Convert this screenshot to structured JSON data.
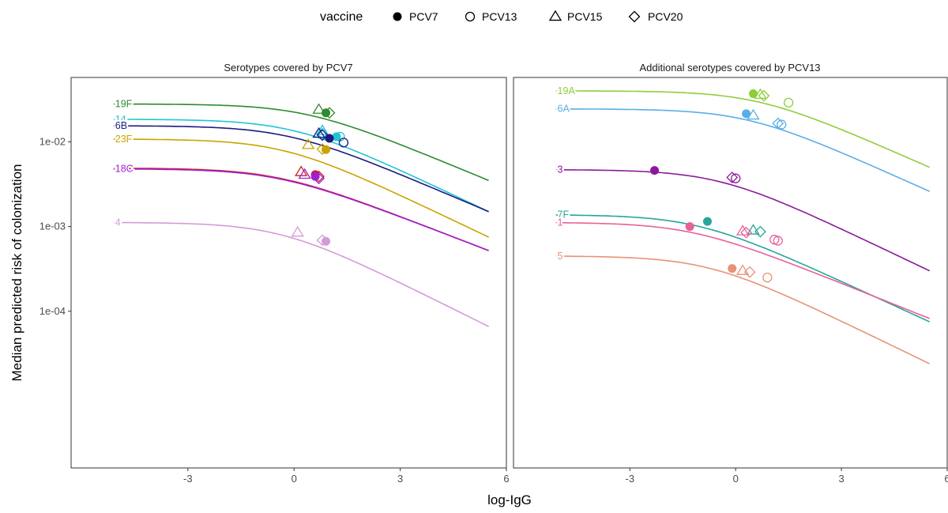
{
  "chart_data": {
    "type": "line",
    "xlabel": "log-IgG",
    "ylabel": "Median predicted risk of colonization",
    "xlim": [
      -6.3,
      6.0
    ],
    "ylim_log10": [
      -5.85,
      -1.24
    ],
    "y_scale": "log10",
    "x_ticks": [
      -3,
      0,
      3,
      6
    ],
    "x_tick_labels": [
      "-3",
      "0",
      "3",
      "6"
    ],
    "y_ticks": [
      0.0001,
      0.001,
      0.01
    ],
    "y_tick_labels": [
      "1e-04",
      "1e-03",
      "1e-02"
    ],
    "grid": false,
    "legend": {
      "position": "top",
      "title": "vaccine",
      "entries": [
        {
          "label": "PCV7",
          "shape": "filled-circle"
        },
        {
          "label": "PCV13",
          "shape": "open-circle"
        },
        {
          "label": "PCV15",
          "shape": "open-triangle"
        },
        {
          "label": "PCV20",
          "shape": "open-diamond"
        }
      ]
    },
    "panels": [
      {
        "title": "Serotypes covered by PCV7",
        "series": [
          {
            "name": "19F",
            "color": "#2e8b2e",
            "plateau": 0.028,
            "knee": 0.3,
            "end_value": 0.0035,
            "markers": {
              "PCV15": [
                0.7,
                0.024
              ],
              "PCV20": [
                1.0,
                0.022
              ],
              "PCV7": [
                0.9,
                0.022
              ]
            }
          },
          {
            "name": "14",
            "color": "#22c4d4",
            "plateau": 0.0185,
            "knee": 0.0,
            "end_value": 0.0015,
            "markers": {
              "PCV15": [
                0.8,
                0.0135
              ],
              "PCV20": [
                0.8,
                0.0125
              ],
              "PCV7": [
                1.2,
                0.0115
              ],
              "PCV13": [
                1.3,
                0.0115
              ]
            }
          },
          {
            "name": "6B",
            "color": "#1b1b80",
            "plateau": 0.0155,
            "knee": -0.2,
            "end_value": 0.0015,
            "markers": {
              "PCV15": [
                0.7,
                0.0125
              ],
              "PCV20": [
                0.8,
                0.012
              ],
              "PCV7": [
                1.0,
                0.011
              ],
              "PCV13": [
                1.4,
                0.0098
              ]
            }
          },
          {
            "name": "23F",
            "color": "#c9a400",
            "plateau": 0.0108,
            "knee": -0.3,
            "end_value": 0.00075,
            "markers": {
              "PCV15": [
                0.4,
                0.0092
              ],
              "PCV20": [
                0.8,
                0.0082
              ],
              "PCV7": [
                0.9,
                0.0081
              ]
            }
          },
          {
            "name": "9V",
            "color": "#cc2222",
            "plateau": 0.0049,
            "knee": -0.5,
            "end_value": 0.00052,
            "markers": {
              "PCV15": [
                0.2,
                0.0044
              ],
              "PCV20": [
                0.7,
                0.0039
              ],
              "PCV7": [
                0.6,
                0.0041
              ]
            }
          },
          {
            "name": "18C",
            "color": "#a020d0",
            "plateau": 0.0048,
            "knee": -0.5,
            "end_value": 0.00052,
            "markers": {
              "PCV15": [
                0.3,
                0.0041
              ],
              "PCV20": [
                0.7,
                0.0037
              ],
              "PCV7": [
                0.6,
                0.0039
              ]
            }
          },
          {
            "name": "4",
            "color": "#d49ad8",
            "plateau": 0.00112,
            "knee": -0.4,
            "end_value": 6.6e-05,
            "markers": {
              "PCV15": [
                0.1,
                0.00085
              ],
              "PCV20": [
                0.8,
                0.00069
              ],
              "PCV7": [
                0.9,
                0.00067
              ]
            }
          }
        ]
      },
      {
        "title": "Additional serotypes covered by PCV13",
        "series": [
          {
            "name": "19A",
            "color": "#8fce3a",
            "plateau": 0.04,
            "knee": 0.6,
            "end_value": 0.005,
            "markers": {
              "PCV7": [
                0.5,
                0.037
              ],
              "PCV15": [
                0.7,
                0.036
              ],
              "PCV20": [
                0.8,
                0.035
              ],
              "PCV13": [
                1.5,
                0.029
              ]
            }
          },
          {
            "name": "6A",
            "color": "#5aaee6",
            "plateau": 0.0245,
            "knee": 0.3,
            "end_value": 0.0026,
            "markers": {
              "PCV7": [
                0.3,
                0.0215
              ],
              "PCV15": [
                0.5,
                0.0205
              ],
              "PCV20": [
                1.2,
                0.0165
              ],
              "PCV13": [
                1.3,
                0.016
              ]
            }
          },
          {
            "name": "3",
            "color": "#8b1a9a",
            "plateau": 0.0047,
            "knee": -0.5,
            "end_value": 0.0003,
            "markers": {
              "PCV7": [
                -2.3,
                0.0046
              ],
              "PCV20": [
                -0.1,
                0.0038
              ],
              "PCV13": [
                0.0,
                0.0037
              ]
            }
          },
          {
            "name": "7F",
            "color": "#26a69a",
            "plateau": 0.00138,
            "knee": -1.1,
            "end_value": 7.5e-05,
            "markers": {
              "PCV7": [
                -0.8,
                0.00115
              ],
              "PCV15": [
                0.5,
                0.0009
              ],
              "PCV20": [
                0.7,
                0.00087
              ]
            }
          },
          {
            "name": "1",
            "color": "#e8609a",
            "plateau": 0.00112,
            "knee": -1.3,
            "end_value": 8.2e-05,
            "markers": {
              "PCV7": [
                -1.3,
                0.001
              ],
              "PCV15": [
                0.2,
                0.00088
              ],
              "PCV20": [
                0.3,
                0.00085
              ],
              "PCV13": [
                1.1,
                0.0007
              ],
              "PCV13b": [
                1.2,
                0.00068
              ]
            }
          },
          {
            "name": "5",
            "color": "#e89277",
            "plateau": 0.00045,
            "knee": -0.8,
            "end_value": 2.4e-05,
            "markers": {
              "PCV7": [
                -0.1,
                0.00032
              ],
              "PCV15": [
                0.2,
                0.0003
              ],
              "PCV20": [
                0.4,
                0.00029
              ],
              "PCV13": [
                0.9,
                0.00025
              ]
            }
          }
        ]
      }
    ]
  }
}
